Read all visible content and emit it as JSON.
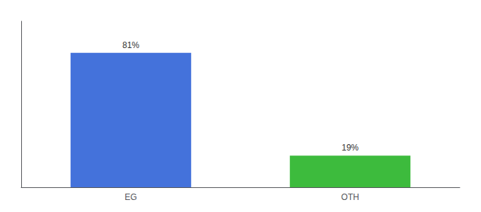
{
  "chart_data": {
    "type": "bar",
    "categories": [
      "EG",
      "OTH"
    ],
    "values": [
      81,
      19
    ],
    "colors": [
      "#4472db",
      "#3dbb3d"
    ],
    "value_labels": [
      "81%",
      "19%"
    ],
    "data_labels": true,
    "ylim": [
      0,
      100
    ],
    "grid": false,
    "tick_labels": "x"
  }
}
